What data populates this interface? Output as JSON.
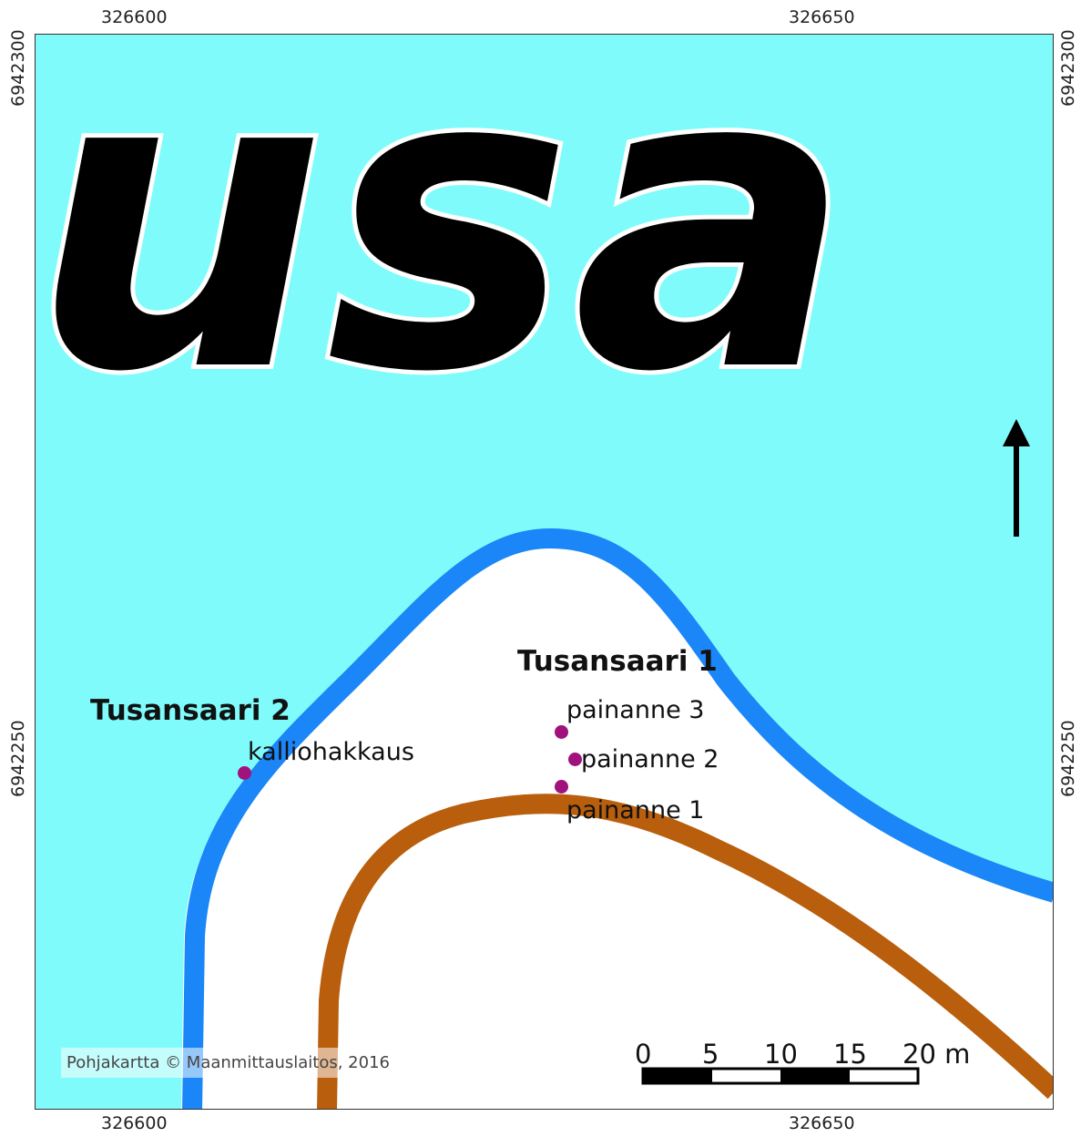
{
  "map": {
    "place_name_fragment": "usa",
    "sites": [
      {
        "name": "Tusansaari 1"
      },
      {
        "name": "Tusansaari 2"
      }
    ],
    "points": [
      {
        "label": "painanne 3"
      },
      {
        "label": "painanne 2"
      },
      {
        "label": "painanne 1"
      },
      {
        "label": "kalliohakkaus"
      }
    ],
    "coordinates": {
      "x_left": "326600",
      "x_right": "326650",
      "y_top": "6942300",
      "y_bottom": "6942250"
    },
    "scale_bar": {
      "ticks": [
        "0",
        "5",
        "10",
        "15",
        "20 m"
      ]
    },
    "copyright": "Pohjakartta © Maanmittauslaitos, 2016",
    "colors": {
      "water": "#7ffbfb",
      "land": "#ffffff",
      "shoreline": "#1a86f7",
      "contour": "#b85e0c",
      "point": "#a0137c",
      "text": "#111111"
    },
    "north_arrow": "north-arrow-icon"
  }
}
